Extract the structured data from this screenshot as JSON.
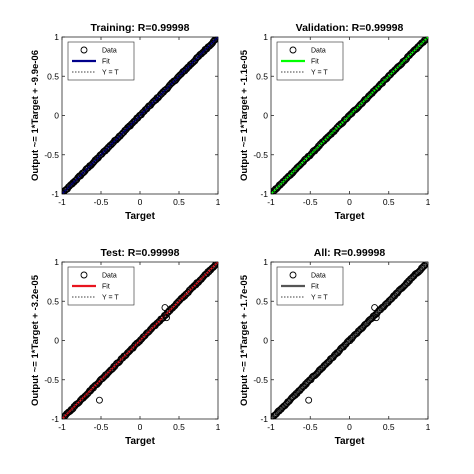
{
  "figure": {
    "background": "#ffffff",
    "marker_color": "#000000"
  },
  "chart_data": [
    {
      "type": "scatter",
      "title": "Training: R=0.99998",
      "xlabel": "Target",
      "ylabel": "Output ~= 1*Target + -9.9e-06",
      "xlim": [
        -1,
        1
      ],
      "ylim": [
        -1,
        1
      ],
      "xticks": [
        "-1",
        "-0.5",
        "0",
        "0.5",
        "1"
      ],
      "yticks": [
        "-1",
        "-0.5",
        "0",
        "0.5",
        "1"
      ],
      "grid": false,
      "legend_position": "top-left",
      "legend": [
        "Data",
        "Fit",
        "Y = T"
      ],
      "fit_color": "#00008b",
      "fit": {
        "slope": 1,
        "intercept": -9.9e-06
      },
      "outliers": []
    },
    {
      "type": "scatter",
      "title": "Validation: R=0.99998",
      "xlabel": "Target",
      "ylabel": "Output ~= 1*Target + -1.1e-05",
      "xlim": [
        -1,
        1
      ],
      "ylim": [
        -1,
        1
      ],
      "xticks": [
        "-1",
        "-0.5",
        "0",
        "0.5",
        "1"
      ],
      "yticks": [
        "-1",
        "-0.5",
        "0",
        "0.5",
        "1"
      ],
      "grid": false,
      "legend_position": "top-left",
      "legend": [
        "Data",
        "Fit",
        "Y = T"
      ],
      "fit_color": "#00ff00",
      "fit": {
        "slope": 1,
        "intercept": -1.1e-05
      },
      "outliers": []
    },
    {
      "type": "scatter",
      "title": "Test: R=0.99998",
      "xlabel": "Target",
      "ylabel": "Output ~= 1*Target + -3.2e-05",
      "xlim": [
        -1,
        1
      ],
      "ylim": [
        -1,
        1
      ],
      "xticks": [
        "-1",
        "-0.5",
        "0",
        "0.5",
        "1"
      ],
      "yticks": [
        "-1",
        "-0.5",
        "0",
        "0.5",
        "1"
      ],
      "grid": false,
      "legend_position": "top-left",
      "legend": [
        "Data",
        "Fit",
        "Y = T"
      ],
      "fit_color": "#e8141e",
      "fit": {
        "slope": 1,
        "intercept": -3.2e-05
      },
      "outliers": [
        {
          "x": -0.52,
          "y": -0.76
        },
        {
          "x": 0.32,
          "y": 0.42
        },
        {
          "x": 0.34,
          "y": 0.29
        }
      ]
    },
    {
      "type": "scatter",
      "title": "All: R=0.99998",
      "xlabel": "Target",
      "ylabel": "Output ~= 1*Target + -1.7e-05",
      "xlim": [
        -1,
        1
      ],
      "ylim": [
        -1,
        1
      ],
      "xticks": [
        "-1",
        "-0.5",
        "0",
        "0.5",
        "1"
      ],
      "yticks": [
        "-1",
        "-0.5",
        "0",
        "0.5",
        "1"
      ],
      "grid": false,
      "legend_position": "top-left",
      "legend": [
        "Data",
        "Fit",
        "Y = T"
      ],
      "fit_color": "#555555",
      "fit": {
        "slope": 1,
        "intercept": -1.7e-05
      },
      "outliers": [
        {
          "x": -0.52,
          "y": -0.76
        },
        {
          "x": 0.32,
          "y": 0.42
        },
        {
          "x": 0.34,
          "y": 0.29
        }
      ]
    }
  ]
}
